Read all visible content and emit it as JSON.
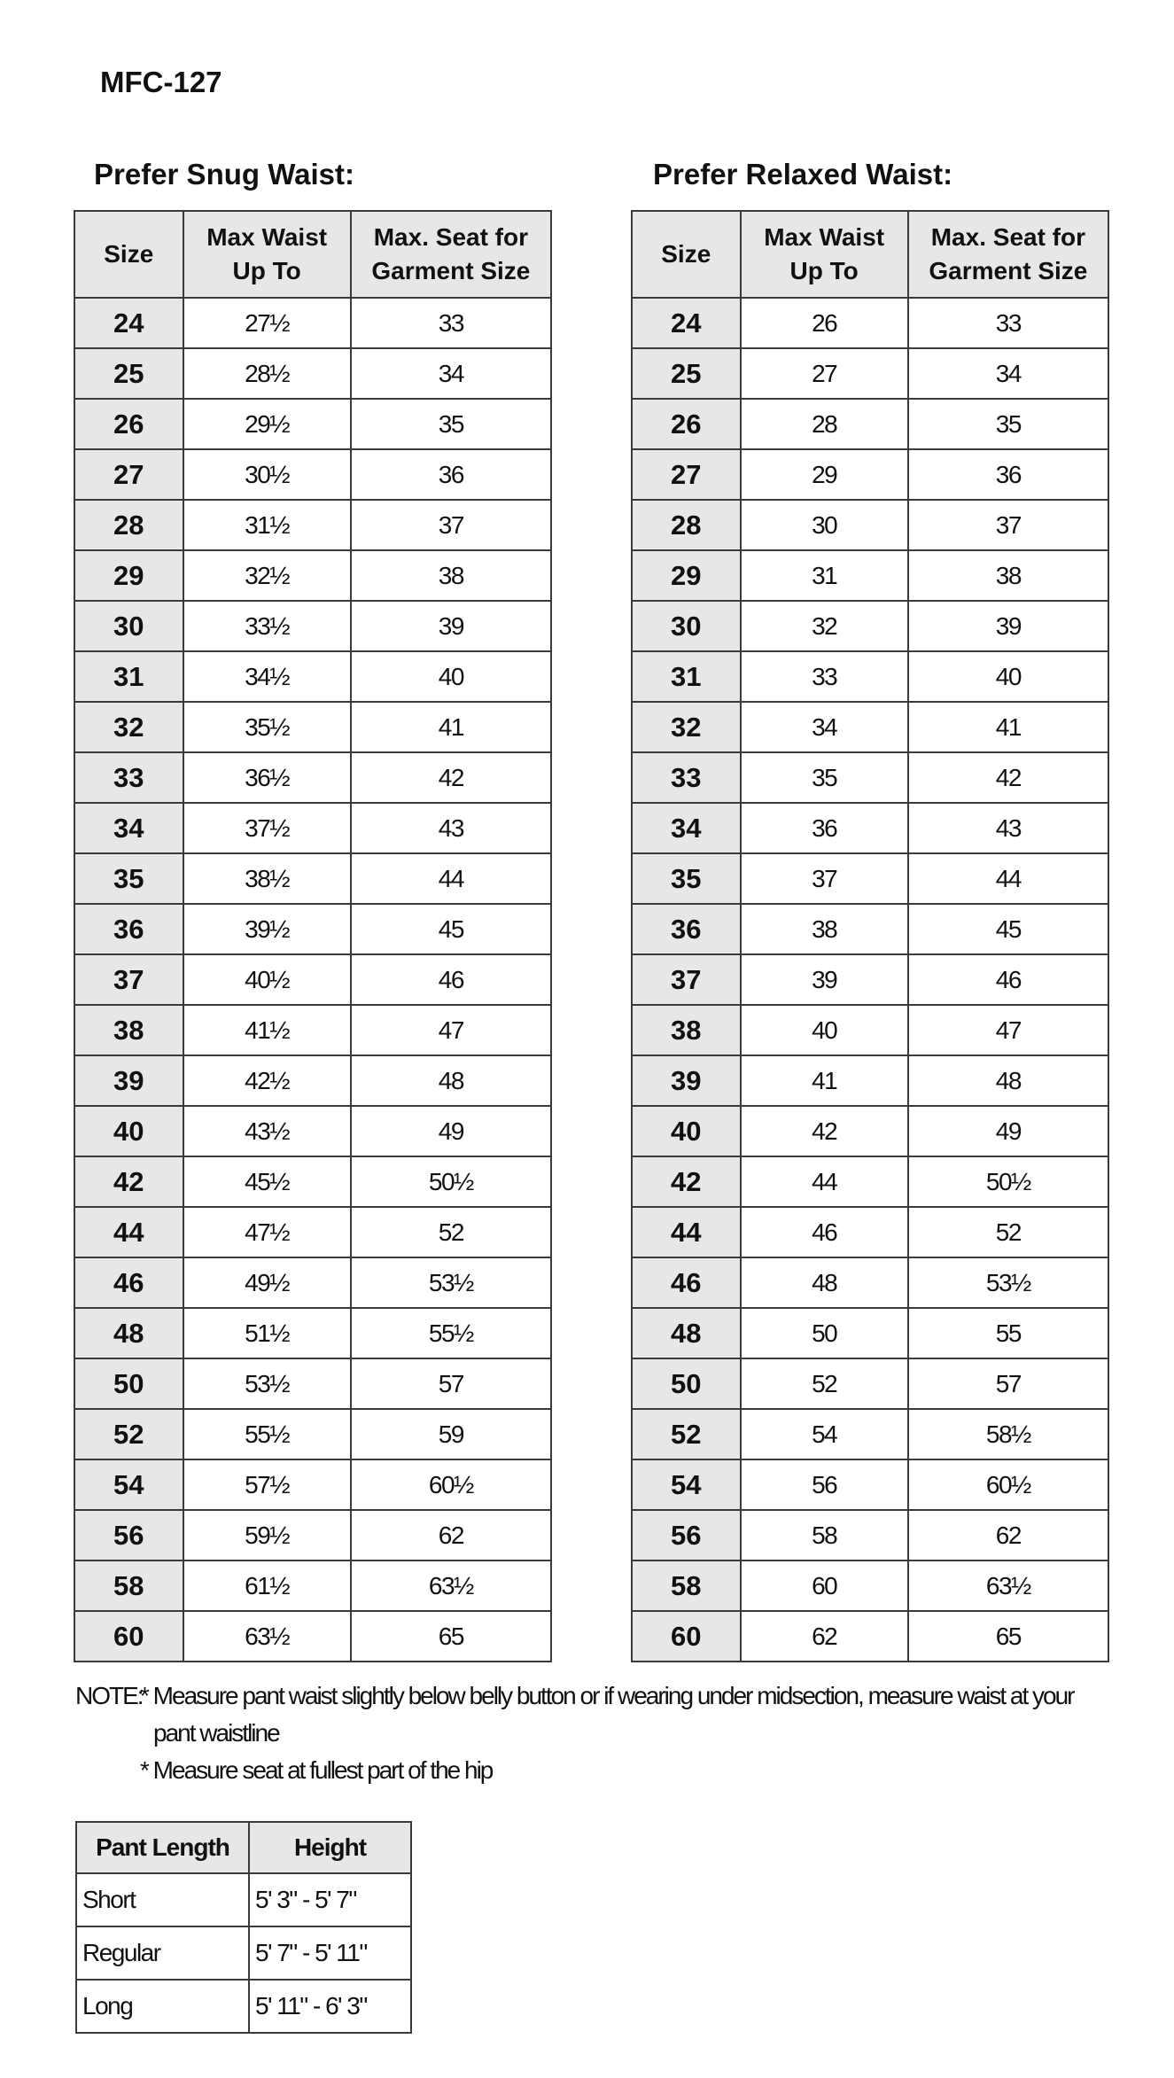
{
  "title": "MFC-127",
  "snug": {
    "heading": "Prefer Snug Waist:",
    "headers": [
      "Size",
      "Max Waist\nUp To",
      "Max. Seat for\nGarment Size"
    ],
    "rows": [
      [
        "24",
        "27½",
        "33"
      ],
      [
        "25",
        "28½",
        "34"
      ],
      [
        "26",
        "29½",
        "35"
      ],
      [
        "27",
        "30½",
        "36"
      ],
      [
        "28",
        "31½",
        "37"
      ],
      [
        "29",
        "32½",
        "38"
      ],
      [
        "30",
        "33½",
        "39"
      ],
      [
        "31",
        "34½",
        "40"
      ],
      [
        "32",
        "35½",
        "41"
      ],
      [
        "33",
        "36½",
        "42"
      ],
      [
        "34",
        "37½",
        "43"
      ],
      [
        "35",
        "38½",
        "44"
      ],
      [
        "36",
        "39½",
        "45"
      ],
      [
        "37",
        "40½",
        "46"
      ],
      [
        "38",
        "41½",
        "47"
      ],
      [
        "39",
        "42½",
        "48"
      ],
      [
        "40",
        "43½",
        "49"
      ],
      [
        "42",
        "45½",
        "50½"
      ],
      [
        "44",
        "47½",
        "52"
      ],
      [
        "46",
        "49½",
        "53½"
      ],
      [
        "48",
        "51½",
        "55½"
      ],
      [
        "50",
        "53½",
        "57"
      ],
      [
        "52",
        "55½",
        "59"
      ],
      [
        "54",
        "57½",
        "60½"
      ],
      [
        "56",
        "59½",
        "62"
      ],
      [
        "58",
        "61½",
        "63½"
      ],
      [
        "60",
        "63½",
        "65"
      ]
    ]
  },
  "relaxed": {
    "heading": "Prefer Relaxed Waist:",
    "headers": [
      "Size",
      "Max Waist\nUp To",
      "Max. Seat for\nGarment Size"
    ],
    "rows": [
      [
        "24",
        "26",
        "33"
      ],
      [
        "25",
        "27",
        "34"
      ],
      [
        "26",
        "28",
        "35"
      ],
      [
        "27",
        "29",
        "36"
      ],
      [
        "28",
        "30",
        "37"
      ],
      [
        "29",
        "31",
        "38"
      ],
      [
        "30",
        "32",
        "39"
      ],
      [
        "31",
        "33",
        "40"
      ],
      [
        "32",
        "34",
        "41"
      ],
      [
        "33",
        "35",
        "42"
      ],
      [
        "34",
        "36",
        "43"
      ],
      [
        "35",
        "37",
        "44"
      ],
      [
        "36",
        "38",
        "45"
      ],
      [
        "37",
        "39",
        "46"
      ],
      [
        "38",
        "40",
        "47"
      ],
      [
        "39",
        "41",
        "48"
      ],
      [
        "40",
        "42",
        "49"
      ],
      [
        "42",
        "44",
        "50½"
      ],
      [
        "44",
        "46",
        "52"
      ],
      [
        "46",
        "48",
        "53½"
      ],
      [
        "48",
        "50",
        "55"
      ],
      [
        "50",
        "52",
        "57"
      ],
      [
        "52",
        "54",
        "58½"
      ],
      [
        "54",
        "56",
        "60½"
      ],
      [
        "56",
        "58",
        "62"
      ],
      [
        "58",
        "60",
        "63½"
      ],
      [
        "60",
        "62",
        "65"
      ]
    ]
  },
  "note": {
    "label": "NOTE:",
    "lines": [
      "* Measure pant waist slightly below belly button or if wearing under midsection, measure waist at your",
      "  pant waistline",
      "* Measure seat at fullest part of the hip"
    ]
  },
  "length_table": {
    "headers": [
      "Pant Length",
      "Height"
    ],
    "rows": [
      [
        "Short",
        "5' 3\" - 5' 7\""
      ],
      [
        "Regular",
        "5' 7\" - 5' 11\""
      ],
      [
        "Long",
        "5' 11\" - 6' 3\""
      ]
    ]
  }
}
